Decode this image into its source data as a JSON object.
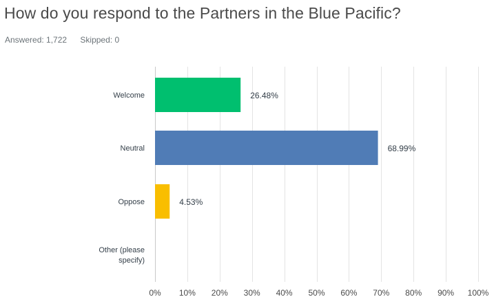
{
  "question": {
    "title": "How do you respond to the Partners in the Blue Pacific?",
    "answered_label": "Answered: 1,722",
    "skipped_label": "Skipped: 0"
  },
  "colors": {
    "Welcome": "#00bf6f",
    "Neutral": "#507cb6",
    "Oppose": "#f9be00",
    "Other (please specify)": "#6bc8cd"
  },
  "chart_data": {
    "type": "bar",
    "orientation": "horizontal",
    "categories": [
      "Welcome",
      "Neutral",
      "Oppose",
      "Other (please specify)"
    ],
    "values": [
      26.48,
      68.99,
      4.53,
      0
    ],
    "value_labels": [
      "26.48%",
      "68.99%",
      "4.53%",
      ""
    ],
    "xlim": [
      0,
      100
    ],
    "x_ticks": [
      "0%",
      "10%",
      "20%",
      "30%",
      "40%",
      "50%",
      "60%",
      "70%",
      "80%",
      "90%",
      "100%"
    ],
    "grid": true,
    "title": "",
    "xlabel": "",
    "ylabel": ""
  }
}
